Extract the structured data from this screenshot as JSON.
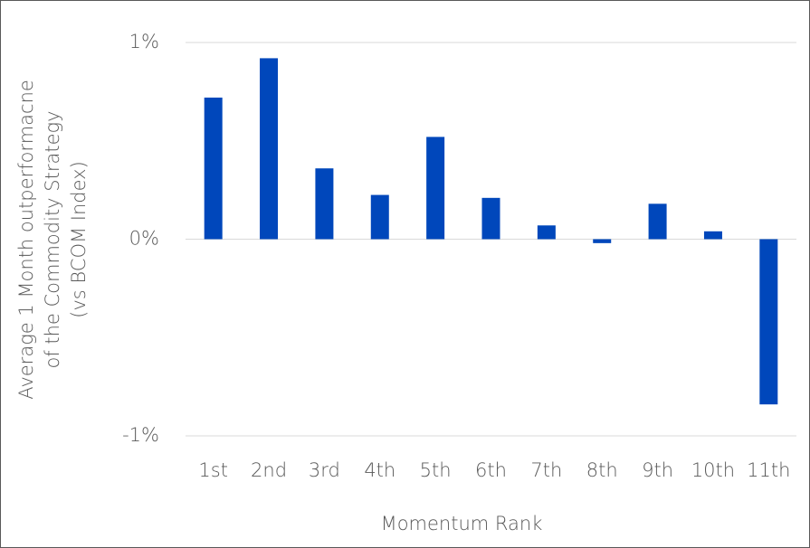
{
  "chart_data": {
    "type": "bar",
    "ylabel": [
      "Average 1 Month outperformacne",
      "of the Commodity Strategy",
      "(vs BCOM Index)"
    ],
    "xlabel": "Momentum Rank",
    "categories": [
      "1st",
      "2nd",
      "3rd",
      "4th",
      "5th",
      "6th",
      "7th",
      "8th",
      "9th",
      "10th",
      "11th"
    ],
    "values": [
      0.72,
      0.92,
      0.36,
      0.225,
      0.52,
      0.21,
      0.07,
      -0.02,
      0.18,
      0.04,
      -0.84
    ],
    "color": "#0047bb",
    "ylim": [
      -1,
      1
    ],
    "yticks": [
      {
        "value": -1,
        "label": "-1%"
      },
      {
        "value": 0,
        "label": "0%"
      },
      {
        "value": 1,
        "label": "1%"
      }
    ],
    "grid": true
  }
}
